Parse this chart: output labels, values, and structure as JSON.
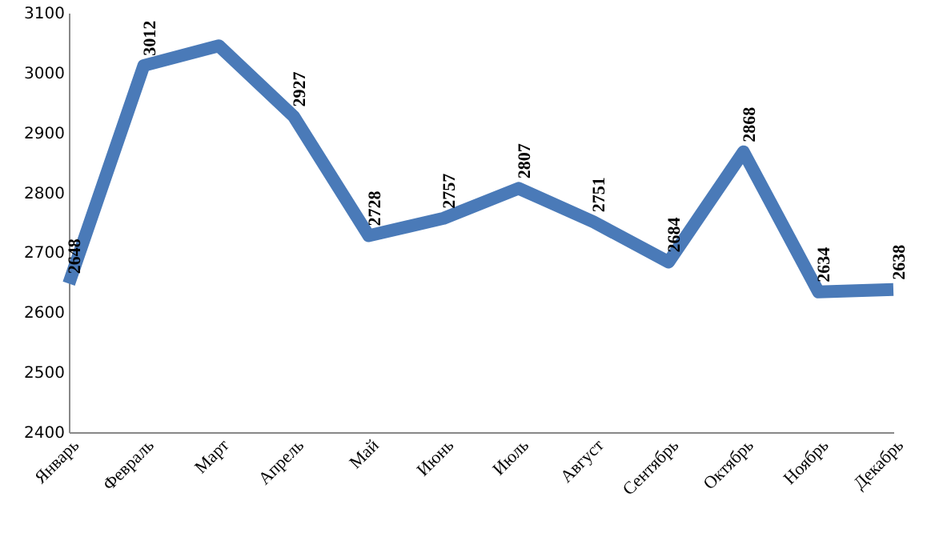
{
  "chart_data": {
    "type": "line",
    "categories": [
      "Январь",
      "Февраль",
      "Март",
      "Апрель",
      "Май",
      "Июнь",
      "Июль",
      "Август",
      "Сентябрь",
      "Октябрь",
      "Ноябрь",
      "Декабрь"
    ],
    "series": [
      {
        "color": "#4a7ab8",
        "values": [
          2648,
          3012,
          3045,
          2927,
          2728,
          2757,
          2807,
          2751,
          2684,
          2868,
          2634,
          2638
        ],
        "value_labels": [
          "2648",
          "3012",
          null,
          "2927",
          "2728",
          "2757",
          "2807",
          "2751",
          "2684",
          "2868",
          "2634",
          "2638"
        ]
      }
    ],
    "ylim": [
      2400,
      3100
    ],
    "yticks": [
      2400,
      2500,
      2600,
      2700,
      2800,
      2900,
      3000,
      3100
    ],
    "grid": false,
    "marker": "none",
    "line_style": "solid"
  }
}
